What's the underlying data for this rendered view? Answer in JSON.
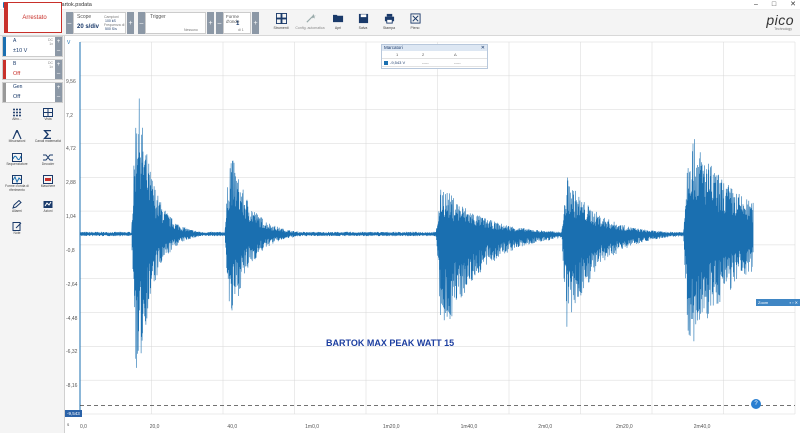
{
  "window": {
    "title": "PicoScope 7 T&M bartok.psdata",
    "controls": [
      "–",
      "□",
      "✕"
    ]
  },
  "toolbar": {
    "run_state": "Arrestato",
    "scope": {
      "label": "Scope",
      "value": "20 s/div"
    },
    "sampling": {
      "line1": "Campioni",
      "line2": "100 kS",
      "line3": "Frequenza di",
      "line4": "500 S/s"
    },
    "trigger": {
      "label": "Trigger",
      "value": "Nessuno"
    },
    "waveforms": {
      "label": "Forme d'onde",
      "value": "1",
      "sub": "di 1"
    },
    "actions": [
      {
        "name": "tools-button",
        "label": "Strumenti"
      },
      {
        "name": "config-button",
        "label": "Config. automatica"
      },
      {
        "name": "open-button",
        "label": "Apri"
      },
      {
        "name": "save-button",
        "label": "Salva"
      },
      {
        "name": "print-button",
        "label": "Stampa"
      },
      {
        "name": "fit-button",
        "label": "Pieno"
      }
    ],
    "logo": "pico",
    "logo_sub": "Technology"
  },
  "channels": [
    {
      "name": "A",
      "value": "±10 V",
      "extra": "DC\n1x",
      "off": false
    },
    {
      "name": "B",
      "value": "Off",
      "extra": "DC\n1x",
      "off": true
    },
    {
      "name": "Gen",
      "value": "Off",
      "extra": "",
      "off": true
    }
  ],
  "tools": [
    {
      "name": "more-tool",
      "label": "Altro..."
    },
    {
      "name": "views-tool",
      "label": "Vista"
    },
    {
      "name": "measurements-tool",
      "label": "Misurazioni"
    },
    {
      "name": "math-channels-tool",
      "label": "Canali matematici"
    },
    {
      "name": "reference-waveforms-tool",
      "label": "Forme d'onda di riferimento"
    },
    {
      "name": "decode-tool",
      "label": "Decoder"
    },
    {
      "name": "waveform-tool",
      "label": "Forme d'onda di riferimento"
    },
    {
      "name": "masks-tool",
      "label": "Maschere"
    },
    {
      "name": "alarms-tool",
      "label": "Allarmi"
    },
    {
      "name": "actions-tool",
      "label": "Azioni"
    },
    {
      "name": "notes-tool",
      "label": "Note"
    }
  ],
  "plot": {
    "y_unit": "V",
    "y_ticks": [
      "9,56",
      "7,2",
      "4,72",
      "2,88",
      "1,04",
      "-0,8",
      "-2,64",
      "-4,48",
      "-6,32",
      "-8,16"
    ],
    "x_ticks": [
      "0,0",
      "20,0",
      "40,0",
      "1m0,0",
      "1m20,0",
      "1m40,0",
      "2m0,0",
      "2m20,0",
      "2m40,0"
    ],
    "trigger_level": "-9,543",
    "x_unit": "s",
    "annotation": "BARTOK MAX PEAK WATT 15",
    "colors": {
      "trace": "#1a6fb0",
      "grid": "#d7d7d7",
      "accent": "#2a62a8"
    }
  },
  "rulers": {
    "title": "Marcatori",
    "col1": "1",
    "col2": "2",
    "col3": "Δ",
    "value1": "-9,543 V",
    "value2": "-----",
    "value3": "-----"
  },
  "zoom": {
    "label": "Zoom"
  },
  "help": {
    "label": "?"
  },
  "envelope": {
    "baseline": -0.08,
    "noise": 0.12,
    "bursts": [
      {
        "t": 15,
        "peak_pos": 8.6,
        "peak_neg": -9.0,
        "decay": 4
      },
      {
        "t": 39.5,
        "peak_pos": 4.8,
        "peak_neg": -5.2,
        "decay": 5
      },
      {
        "t": 95,
        "peak_pos": 2.8,
        "peak_neg": -6.0,
        "decay": 10
      },
      {
        "t": 128,
        "peak_pos": 3.2,
        "peak_neg": -5.5,
        "decay": 8
      },
      {
        "t": 160,
        "peak_pos": 5.8,
        "peak_neg": -6.8,
        "decay": 14
      }
    ]
  }
}
